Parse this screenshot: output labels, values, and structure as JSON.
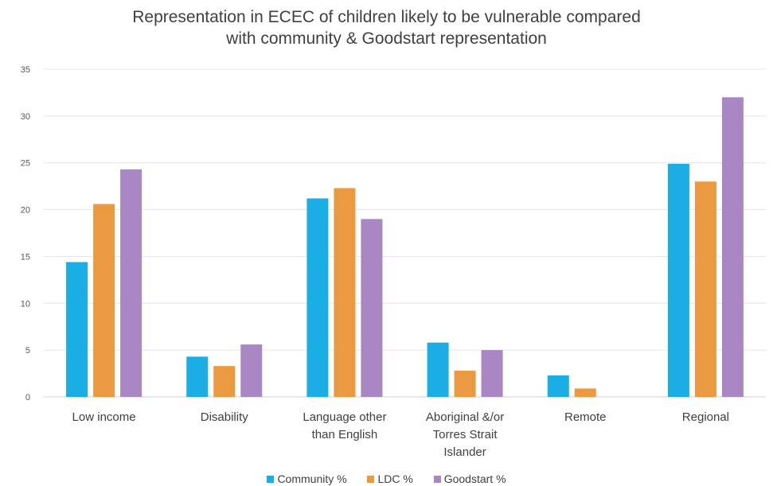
{
  "chart_data": {
    "type": "bar",
    "title": "Representation in ECEC of children likely to be vulnerable compared with community & Goodstart representation",
    "title_lines": [
      "Representation in ECEC of children likely to be vulnerable compared",
      "with community & Goodstart representation"
    ],
    "categories": [
      [
        "Low income"
      ],
      [
        "Disability"
      ],
      [
        "Language other",
        "than English"
      ],
      [
        "Aboriginal &/or",
        "Torres Strait",
        "Islander"
      ],
      [
        "Remote"
      ],
      [
        "Regional"
      ]
    ],
    "series": [
      {
        "name": "Community %",
        "color": "#1aaee4",
        "values": [
          14.4,
          4.3,
          21.2,
          5.8,
          2.3,
          24.9
        ]
      },
      {
        "name": "LDC %",
        "color": "#ec9a41",
        "values": [
          20.6,
          3.3,
          22.3,
          2.8,
          0.9,
          23.0
        ]
      },
      {
        "name": "Goodstart %",
        "color": "#a887c4",
        "values": [
          24.3,
          5.6,
          19.0,
          5.0,
          0,
          32.0
        ]
      }
    ],
    "yticks": [
      "0",
      "5",
      "10",
      "15",
      "20",
      "25",
      "30",
      "35"
    ],
    "ylim": [
      0,
      35
    ],
    "grid": true,
    "legend_position": "bottom"
  }
}
